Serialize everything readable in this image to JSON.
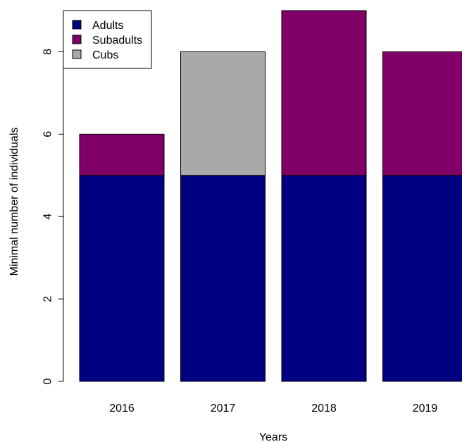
{
  "chart_data": {
    "type": "bar",
    "stacked": true,
    "categories": [
      "2016",
      "2017",
      "2018",
      "2019"
    ],
    "series": [
      {
        "name": "Adults",
        "values": [
          5,
          5,
          5,
          5
        ],
        "color": "#000080"
      },
      {
        "name": "Subadults",
        "values": [
          1,
          0,
          4,
          3
        ],
        "color": "#800068"
      },
      {
        "name": "Cubs",
        "values": [
          0,
          3,
          0,
          0
        ],
        "color": "#A9A9A9"
      }
    ],
    "title": "",
    "xlabel": "Years",
    "ylabel": "Minimal number of individuals",
    "ylim": [
      0,
      9
    ],
    "yticks": [
      0,
      2,
      4,
      6,
      8
    ],
    "grid": false,
    "legend_position": "top-left"
  }
}
